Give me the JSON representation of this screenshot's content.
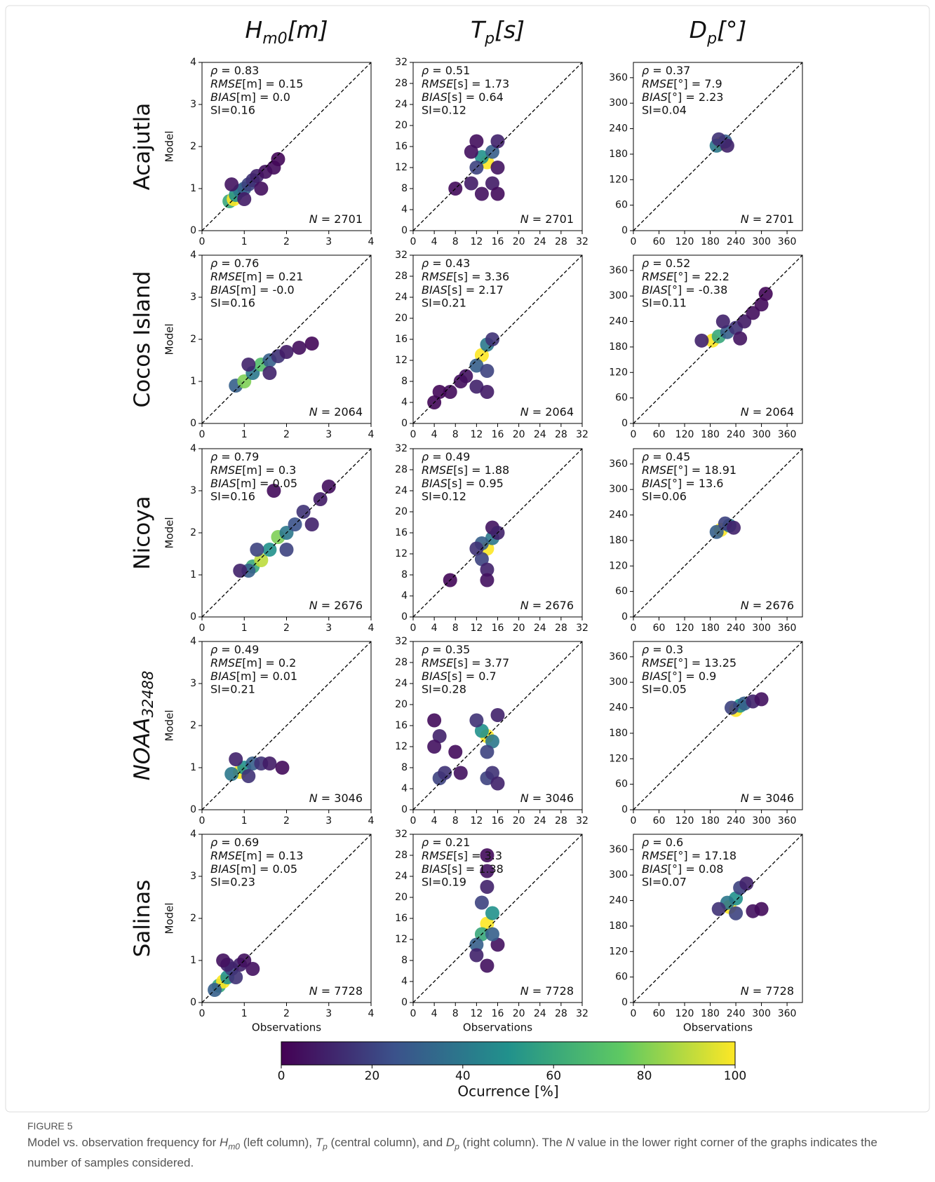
{
  "column_titles": [
    {
      "text": "H",
      "sub": "m0",
      "rest": "[m]"
    },
    {
      "text": "T",
      "sub": "p",
      "rest": "[s]"
    },
    {
      "text": "D",
      "sub": "p",
      "rest": "[°]"
    }
  ],
  "row_titles": [
    {
      "text": "Acajutla"
    },
    {
      "text": "Cocos Island"
    },
    {
      "text": "Nicoya"
    },
    {
      "text": "NOAA",
      "sub": "32488",
      "italic": true
    },
    {
      "text": "Salinas"
    }
  ],
  "colorbar": {
    "label": "Ocurrence [%]",
    "lim": [
      0,
      100
    ],
    "ticks": [
      0,
      20,
      40,
      60,
      80,
      100
    ],
    "colormap": [
      "#440154",
      "#3b528b",
      "#21918c",
      "#5ec962",
      "#fde725"
    ]
  },
  "caption": {
    "label": "FIGURE 5",
    "parts": [
      {
        "text": "Model vs. observation frequency for "
      },
      {
        "text": "H",
        "italic": true
      },
      {
        "text": "m0",
        "italic": true,
        "sub": true
      },
      {
        "text": " (left column), "
      },
      {
        "text": "T",
        "italic": true
      },
      {
        "text": "p",
        "italic": true,
        "sub": true
      },
      {
        "text": " (central column), and "
      },
      {
        "text": "D",
        "italic": true
      },
      {
        "text": "p",
        "italic": true,
        "sub": true
      },
      {
        "text": " (right column). The "
      },
      {
        "text": "N",
        "italic": true
      },
      {
        "text": " value in the lower right corner of the graphs indicates the number of samples considered."
      }
    ]
  },
  "chart_data": [
    {
      "type": "scatter",
      "ylabel": "Model",
      "xlim": [
        0,
        4
      ],
      "ylim": [
        0,
        4
      ],
      "xticks": [
        0,
        1,
        2,
        3,
        4
      ],
      "yticks": [
        0,
        1,
        2,
        3,
        4
      ],
      "annotations": [
        "ρ = 0.83",
        "RMSE[m] = 0.15",
        "BIAS[m] = 0.0",
        "SI=0.16"
      ],
      "n_label": "N = 2701",
      "x": [
        0.65,
        0.75,
        0.8,
        0.9,
        1.0,
        1.1,
        1.2,
        1.3,
        1.5,
        1.7,
        1.8,
        1.0,
        0.7,
        1.4
      ],
      "values": [
        0.7,
        0.75,
        0.85,
        0.95,
        1.0,
        1.1,
        1.2,
        1.3,
        1.4,
        1.5,
        1.7,
        0.75,
        1.1,
        1.0
      ],
      "occurrence": [
        60,
        100,
        50,
        40,
        30,
        20,
        15,
        10,
        5,
        3,
        2,
        8,
        6,
        4
      ]
    },
    {
      "type": "scatter",
      "xlim": [
        0,
        32
      ],
      "ylim": [
        0,
        32
      ],
      "xticks": [
        0,
        4,
        8,
        12,
        16,
        20,
        24,
        28,
        32
      ],
      "yticks": [
        0,
        4,
        8,
        12,
        16,
        20,
        24,
        28,
        32
      ],
      "annotations": [
        "ρ = 0.51",
        "RMSE[s] = 1.73",
        "BIAS[s] = 0.64",
        "SI=0.12"
      ],
      "n_label": "N = 2701",
      "x": [
        14,
        13,
        15,
        12,
        16,
        11,
        15,
        11,
        13,
        16,
        8,
        12,
        16
      ],
      "values": [
        13,
        14,
        15,
        12,
        17,
        9,
        9,
        15,
        7,
        7,
        8,
        17,
        12
      ],
      "occurrence": [
        100,
        50,
        30,
        20,
        10,
        8,
        8,
        5,
        5,
        3,
        3,
        4,
        6
      ]
    },
    {
      "type": "scatter",
      "xlim": [
        0,
        396
      ],
      "ylim": [
        0,
        396
      ],
      "xticks": [
        0,
        60,
        120,
        180,
        240,
        300,
        360
      ],
      "yticks": [
        0,
        60,
        120,
        180,
        240,
        300,
        360
      ],
      "annotations": [
        "ρ = 0.37",
        "RMSE[°] = 7.9",
        "BIAS[°] = 2.23",
        "SI=0.04"
      ],
      "n_label": "N = 2701",
      "x": [
        205,
        195,
        215,
        220,
        200
      ],
      "values": [
        205,
        200,
        210,
        200,
        215
      ],
      "occurrence": [
        100,
        40,
        30,
        10,
        15
      ]
    },
    {
      "type": "scatter",
      "ylabel": "Model",
      "xlim": [
        0,
        4
      ],
      "ylim": [
        0,
        4
      ],
      "xticks": [
        0,
        1,
        2,
        3,
        4
      ],
      "yticks": [
        0,
        1,
        2,
        3,
        4
      ],
      "annotations": [
        "ρ = 0.76",
        "RMSE[m] = 0.21",
        "BIAS[m] = -0.0",
        "SI=0.16"
      ],
      "n_label": "N = 2064",
      "x": [
        0.8,
        1.0,
        1.2,
        1.4,
        1.6,
        1.8,
        2.0,
        2.3,
        2.6,
        1.1,
        1.6
      ],
      "values": [
        0.9,
        1.0,
        1.2,
        1.4,
        1.5,
        1.6,
        1.7,
        1.8,
        1.9,
        1.4,
        1.2
      ],
      "occurrence": [
        30,
        80,
        40,
        70,
        30,
        15,
        8,
        4,
        2,
        10,
        10
      ]
    },
    {
      "type": "scatter",
      "xlim": [
        0,
        32
      ],
      "ylim": [
        0,
        32
      ],
      "xticks": [
        0,
        4,
        8,
        12,
        16,
        20,
        24,
        28,
        32
      ],
      "yticks": [
        0,
        4,
        8,
        12,
        16,
        20,
        24,
        28,
        32
      ],
      "annotations": [
        "ρ = 0.43",
        "RMSE[s] = 3.36",
        "BIAS[s] = 2.17",
        "SI=0.21"
      ],
      "n_label": "N = 2064",
      "x": [
        13,
        14,
        12,
        14,
        12,
        14,
        15,
        10,
        7,
        5,
        4,
        9
      ],
      "values": [
        13,
        15,
        11,
        10,
        7,
        6,
        16,
        9,
        6,
        6,
        4,
        8
      ],
      "occurrence": [
        100,
        40,
        30,
        20,
        10,
        8,
        15,
        5,
        3,
        2,
        2,
        4
      ]
    },
    {
      "type": "scatter",
      "xlim": [
        0,
        396
      ],
      "ylim": [
        0,
        396
      ],
      "xticks": [
        0,
        60,
        120,
        180,
        240,
        300,
        360
      ],
      "yticks": [
        0,
        60,
        120,
        180,
        240,
        300,
        360
      ],
      "annotations": [
        "ρ = 0.52",
        "RMSE[°] = 22.2",
        "BIAS[°] = -0.38",
        "SI=0.11"
      ],
      "n_label": "N = 2064",
      "x": [
        185,
        200,
        220,
        240,
        260,
        280,
        300,
        310,
        160,
        210,
        250
      ],
      "values": [
        195,
        205,
        215,
        225,
        240,
        260,
        280,
        305,
        195,
        240,
        200
      ],
      "occurrence": [
        100,
        60,
        30,
        15,
        8,
        4,
        3,
        2,
        10,
        10,
        6
      ]
    },
    {
      "type": "scatter",
      "ylabel": "Model",
      "xlim": [
        0,
        4
      ],
      "ylim": [
        0,
        4
      ],
      "xticks": [
        0,
        1,
        2,
        3,
        4
      ],
      "yticks": [
        0,
        1,
        2,
        3,
        4
      ],
      "annotations": [
        "ρ = 0.79",
        "RMSE[m] = 0.3",
        "BIAS[m] = 0.05",
        "SI=0.16"
      ],
      "n_label": "N = 2676",
      "x": [
        1.2,
        1.4,
        1.6,
        1.8,
        2.0,
        2.2,
        2.4,
        2.8,
        3.0,
        1.3,
        2.0,
        2.6,
        1.1,
        0.9,
        1.7
      ],
      "values": [
        1.2,
        1.35,
        1.6,
        1.9,
        2.0,
        2.2,
        2.5,
        2.8,
        3.1,
        1.6,
        1.6,
        2.2,
        1.1,
        1.1,
        3.0
      ],
      "occurrence": [
        60,
        90,
        50,
        80,
        40,
        25,
        15,
        8,
        4,
        20,
        20,
        10,
        30,
        10,
        3
      ]
    },
    {
      "type": "scatter",
      "xlim": [
        0,
        32
      ],
      "ylim": [
        0,
        32
      ],
      "xticks": [
        0,
        4,
        8,
        12,
        16,
        20,
        24,
        28,
        32
      ],
      "yticks": [
        0,
        4,
        8,
        12,
        16,
        20,
        24,
        28,
        32
      ],
      "annotations": [
        "ρ = 0.49",
        "RMSE[s] = 1.88",
        "BIAS[s] = 0.95",
        "SI=0.12"
      ],
      "n_label": "N = 2676",
      "x": [
        14,
        15,
        13,
        13,
        14,
        14,
        15,
        12,
        7,
        16
      ],
      "values": [
        13,
        15,
        14,
        11,
        9,
        7,
        17,
        13,
        7,
        16
      ],
      "occurrence": [
        100,
        40,
        30,
        20,
        10,
        5,
        6,
        15,
        2,
        10
      ]
    },
    {
      "type": "scatter",
      "xlim": [
        0,
        396
      ],
      "ylim": [
        0,
        396
      ],
      "xticks": [
        0,
        60,
        120,
        180,
        240,
        300,
        360
      ],
      "yticks": [
        0,
        60,
        120,
        180,
        240,
        300,
        360
      ],
      "annotations": [
        "ρ = 0.45",
        "RMSE[°] = 18.91",
        "BIAS[°] = 13.6",
        "SI=0.06"
      ],
      "n_label": "N = 2676",
      "x": [
        205,
        225,
        195,
        215,
        235
      ],
      "values": [
        205,
        215,
        200,
        220,
        210
      ],
      "occurrence": [
        100,
        40,
        30,
        20,
        10
      ]
    },
    {
      "type": "scatter",
      "ylabel": "Model",
      "xlim": [
        0,
        4
      ],
      "ylim": [
        0,
        4
      ],
      "xticks": [
        0,
        1,
        2,
        3,
        4
      ],
      "yticks": [
        0,
        1,
        2,
        3,
        4
      ],
      "annotations": [
        "ρ = 0.49",
        "RMSE[m] = 0.2",
        "BIAS[m] = 0.01",
        "SI=0.21"
      ],
      "n_label": "N = 3046",
      "x": [
        0.9,
        0.7,
        1.0,
        1.2,
        1.4,
        1.6,
        1.9,
        0.8,
        1.1
      ],
      "values": [
        0.9,
        0.85,
        1.0,
        1.1,
        1.1,
        1.1,
        1.0,
        1.2,
        0.8
      ],
      "occurrence": [
        100,
        40,
        50,
        30,
        15,
        8,
        3,
        10,
        15
      ]
    },
    {
      "type": "scatter",
      "xlim": [
        0,
        32
      ],
      "ylim": [
        0,
        32
      ],
      "xticks": [
        0,
        4,
        8,
        12,
        16,
        20,
        24,
        28,
        32
      ],
      "yticks": [
        0,
        4,
        8,
        12,
        16,
        20,
        24,
        28,
        32
      ],
      "annotations": [
        "ρ = 0.35",
        "RMSE[s] = 3.77",
        "BIAS[s] = 0.7",
        "SI=0.28"
      ],
      "n_label": "N = 3046",
      "x": [
        14,
        13,
        15,
        12,
        16,
        14,
        14,
        15,
        16,
        5,
        6,
        5,
        4,
        9,
        8,
        4
      ],
      "values": [
        14,
        15,
        13,
        17,
        18,
        11,
        6,
        7,
        5,
        6,
        7,
        14,
        12,
        7,
        11,
        17
      ],
      "occurrence": [
        100,
        50,
        40,
        15,
        10,
        20,
        20,
        15,
        10,
        20,
        15,
        10,
        5,
        5,
        3,
        3
      ]
    },
    {
      "type": "scatter",
      "xlim": [
        0,
        396
      ],
      "ylim": [
        0,
        396
      ],
      "xticks": [
        0,
        60,
        120,
        180,
        240,
        300,
        360
      ],
      "yticks": [
        0,
        60,
        120,
        180,
        240,
        300,
        360
      ],
      "annotations": [
        "ρ = 0.3",
        "RMSE[°] = 13.25",
        "BIAS[°] = 0.9",
        "SI=0.05"
      ],
      "n_label": "N = 3046",
      "x": [
        240,
        250,
        260,
        230,
        280,
        300
      ],
      "values": [
        235,
        245,
        250,
        240,
        255,
        260
      ],
      "occurrence": [
        100,
        50,
        30,
        20,
        10,
        5
      ]
    },
    {
      "type": "scatter",
      "ylabel": "Model",
      "xlabel": "Observations",
      "xlim": [
        0,
        4
      ],
      "ylim": [
        0,
        4
      ],
      "xticks": [
        0,
        1,
        2,
        3,
        4
      ],
      "yticks": [
        0,
        1,
        2,
        3,
        4
      ],
      "annotations": [
        "ρ = 0.69",
        "RMSE[m] = 0.13",
        "BIAS[m] = 0.05",
        "SI=0.23"
      ],
      "n_label": "N = 7728",
      "x": [
        0.4,
        0.5,
        0.6,
        0.3,
        0.7,
        0.9,
        1.0,
        0.8,
        0.6,
        1.2,
        0.5
      ],
      "values": [
        0.4,
        0.5,
        0.6,
        0.3,
        0.8,
        0.9,
        1.0,
        0.6,
        0.9,
        0.8,
        1.0
      ],
      "occurrence": [
        60,
        100,
        50,
        30,
        20,
        10,
        5,
        15,
        10,
        5,
        5
      ]
    },
    {
      "type": "scatter",
      "xlabel": "Observations",
      "xlim": [
        0,
        32
      ],
      "ylim": [
        0,
        32
      ],
      "xticks": [
        0,
        4,
        8,
        12,
        16,
        20,
        24,
        28,
        32
      ],
      "yticks": [
        0,
        4,
        8,
        12,
        16,
        20,
        24,
        28,
        32
      ],
      "annotations": [
        "ρ = 0.21",
        "RMSE[s] = 3.3",
        "BIAS[s] = 1.38",
        "SI=0.19"
      ],
      "n_label": "N = 7728",
      "x": [
        14,
        15,
        13,
        12,
        13,
        14,
        14,
        14,
        12,
        14,
        16,
        15
      ],
      "values": [
        15,
        17,
        13,
        11,
        19,
        22,
        25,
        28,
        9,
        7,
        11,
        13
      ],
      "occurrence": [
        100,
        50,
        60,
        30,
        20,
        10,
        5,
        3,
        10,
        5,
        5,
        30
      ]
    },
    {
      "type": "scatter",
      "xlabel": "Observations",
      "xlim": [
        0,
        396
      ],
      "ylim": [
        0,
        396
      ],
      "xticks": [
        0,
        60,
        120,
        180,
        240,
        300,
        360
      ],
      "yticks": [
        0,
        60,
        120,
        180,
        240,
        300,
        360
      ],
      "annotations": [
        "ρ = 0.6",
        "RMSE[°] = 17.18",
        "BIAS[°] = 0.08",
        "SI=0.07"
      ],
      "n_label": "N = 7728",
      "x": [
        225,
        240,
        220,
        250,
        265,
        200,
        280,
        300,
        240
      ],
      "values": [
        225,
        245,
        235,
        270,
        280,
        220,
        215,
        220,
        210
      ],
      "occurrence": [
        100,
        50,
        40,
        20,
        10,
        15,
        5,
        3,
        20
      ]
    }
  ]
}
